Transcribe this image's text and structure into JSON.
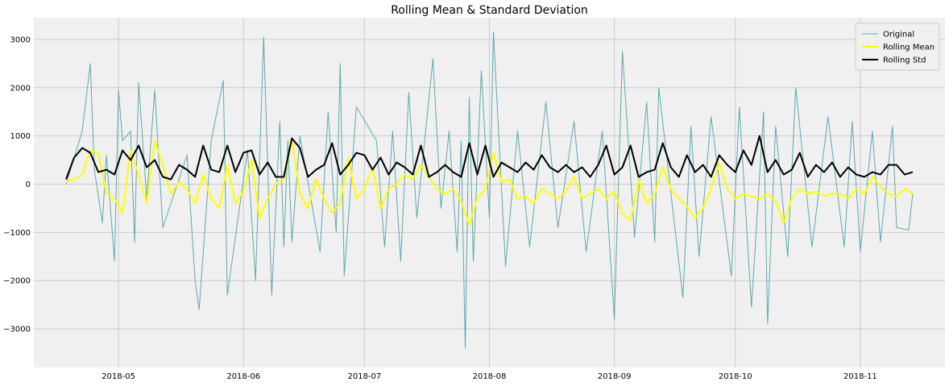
{
  "chart_data": {
    "type": "line",
    "title": "Rolling Mean & Standard Deviation",
    "xlabel": "",
    "ylabel": "",
    "x_range": [
      "2018-04-10",
      "2018-11-22"
    ],
    "ylim": [
      -3800,
      3450
    ],
    "grid": true,
    "legend_position": "top-right",
    "x_ticks": [
      "2018-05",
      "2018-06",
      "2018-07",
      "2018-08",
      "2018-09",
      "2018-10",
      "2018-11"
    ],
    "x_tick_dates": [
      "2018-05-01",
      "2018-06-01",
      "2018-07-01",
      "2018-08-01",
      "2018-09-01",
      "2018-10-01",
      "2018-11-01"
    ],
    "y_ticks": [
      -3000,
      -2000,
      -1000,
      0,
      1000,
      2000,
      3000
    ],
    "series": [
      {
        "name": "Original",
        "color": "#5fa8aa",
        "x": [
          "2018-04-18",
          "2018-04-22",
          "2018-04-24",
          "2018-04-25",
          "2018-04-27",
          "2018-04-28",
          "2018-04-30",
          "2018-05-01",
          "2018-05-02",
          "2018-05-04",
          "2018-05-05",
          "2018-05-06",
          "2018-05-08",
          "2018-05-10",
          "2018-05-12",
          "2018-05-18",
          "2018-05-20",
          "2018-05-21",
          "2018-05-24",
          "2018-05-27",
          "2018-05-28",
          "2018-06-02",
          "2018-06-04",
          "2018-06-06",
          "2018-06-08",
          "2018-06-10",
          "2018-06-11",
          "2018-06-12",
          "2018-06-13",
          "2018-06-15",
          "2018-06-20",
          "2018-06-22",
          "2018-06-24",
          "2018-06-25",
          "2018-06-26",
          "2018-06-29",
          "2018-07-04",
          "2018-07-06",
          "2018-07-08",
          "2018-07-10",
          "2018-07-12",
          "2018-07-14",
          "2018-07-18",
          "2018-07-20",
          "2018-07-22",
          "2018-07-24",
          "2018-07-25",
          "2018-07-26",
          "2018-07-27",
          "2018-07-28",
          "2018-07-30",
          "2018-08-01",
          "2018-08-02",
          "2018-08-05",
          "2018-08-08",
          "2018-08-11",
          "2018-08-15",
          "2018-08-18",
          "2018-08-22",
          "2018-08-25",
          "2018-08-29",
          "2018-09-01",
          "2018-09-03",
          "2018-09-06",
          "2018-09-09",
          "2018-09-11",
          "2018-09-12",
          "2018-09-18",
          "2018-09-20",
          "2018-09-22",
          "2018-09-25",
          "2018-09-30",
          "2018-10-02",
          "2018-10-05",
          "2018-10-08",
          "2018-10-09",
          "2018-10-11",
          "2018-10-14",
          "2018-10-16",
          "2018-10-20",
          "2018-10-24",
          "2018-10-28",
          "2018-10-30",
          "2018-11-01",
          "2018-11-04",
          "2018-11-06",
          "2018-11-09",
          "2018-11-10",
          "2018-11-13",
          "2018-11-14"
        ],
        "values": [
          0,
          1100,
          2500,
          300,
          -800,
          600,
          -1600,
          1950,
          900,
          1100,
          -1200,
          2100,
          -300,
          1950,
          -900,
          600,
          -2000,
          -2600,
          900,
          2150,
          -2300,
          700,
          -2000,
          3050,
          -2300,
          1300,
          -1300,
          900,
          -1200,
          1000,
          -1400,
          1500,
          -1000,
          2500,
          -1900,
          1600,
          900,
          -1300,
          1100,
          -1600,
          1900,
          -700,
          2600,
          -500,
          1100,
          -1400,
          900,
          -3400,
          1800,
          -1600,
          2350,
          -700,
          3150,
          -1700,
          1100,
          -1300,
          1700,
          -900,
          1300,
          -1400,
          1100,
          -2800,
          2750,
          -1100,
          1700,
          -1200,
          2000,
          -2350,
          1200,
          -1500,
          1400,
          -1900,
          1600,
          -2550,
          1500,
          -2900,
          1200,
          -1500,
          2000,
          -1300,
          1400,
          -1300,
          1300,
          -1400,
          1100,
          -1200,
          1200,
          -900,
          -950,
          -200
        ]
      },
      {
        "name": "Rolling Mean",
        "color": "#ffff00",
        "x": [
          "2018-04-18",
          "2018-04-20",
          "2018-04-22",
          "2018-04-24",
          "2018-04-26",
          "2018-04-28",
          "2018-04-30",
          "2018-05-02",
          "2018-05-04",
          "2018-05-06",
          "2018-05-08",
          "2018-05-10",
          "2018-05-12",
          "2018-05-14",
          "2018-05-16",
          "2018-05-18",
          "2018-05-20",
          "2018-05-22",
          "2018-05-24",
          "2018-05-26",
          "2018-05-28",
          "2018-05-30",
          "2018-06-01",
          "2018-06-03",
          "2018-06-05",
          "2018-06-07",
          "2018-06-09",
          "2018-06-11",
          "2018-06-13",
          "2018-06-15",
          "2018-06-17",
          "2018-06-19",
          "2018-06-21",
          "2018-06-23",
          "2018-06-25",
          "2018-06-27",
          "2018-06-29",
          "2018-07-01",
          "2018-07-03",
          "2018-07-05",
          "2018-07-07",
          "2018-07-09",
          "2018-07-11",
          "2018-07-13",
          "2018-07-15",
          "2018-07-17",
          "2018-07-19",
          "2018-07-21",
          "2018-07-23",
          "2018-07-25",
          "2018-07-27",
          "2018-07-29",
          "2018-07-31",
          "2018-08-02",
          "2018-08-04",
          "2018-08-06",
          "2018-08-08",
          "2018-08-10",
          "2018-08-12",
          "2018-08-14",
          "2018-08-16",
          "2018-08-18",
          "2018-08-20",
          "2018-08-22",
          "2018-08-24",
          "2018-08-26",
          "2018-08-28",
          "2018-08-30",
          "2018-09-01",
          "2018-09-03",
          "2018-09-05",
          "2018-09-07",
          "2018-09-09",
          "2018-09-11",
          "2018-09-13",
          "2018-09-15",
          "2018-09-17",
          "2018-09-19",
          "2018-09-21",
          "2018-09-23",
          "2018-09-25",
          "2018-09-27",
          "2018-09-29",
          "2018-10-01",
          "2018-10-03",
          "2018-10-05",
          "2018-10-07",
          "2018-10-09",
          "2018-10-11",
          "2018-10-13",
          "2018-10-15",
          "2018-10-17",
          "2018-10-19",
          "2018-10-21",
          "2018-10-23",
          "2018-10-25",
          "2018-10-27",
          "2018-10-29",
          "2018-10-31",
          "2018-11-02",
          "2018-11-04",
          "2018-11-06",
          "2018-11-08",
          "2018-11-10",
          "2018-11-12",
          "2018-11-14"
        ],
        "values": [
          50,
          100,
          200,
          700,
          650,
          -200,
          -300,
          -600,
          700,
          200,
          -400,
          900,
          400,
          -200,
          50,
          -100,
          -400,
          200,
          -300,
          -500,
          400,
          -400,
          -150,
          500,
          -700,
          -300,
          0,
          100,
          950,
          -200,
          -500,
          100,
          -300,
          -600,
          -400,
          550,
          -300,
          -100,
          350,
          -500,
          -100,
          0,
          200,
          100,
          400,
          150,
          -100,
          -200,
          -100,
          -350,
          -850,
          -300,
          -100,
          650,
          50,
          100,
          -300,
          -250,
          -400,
          -100,
          -200,
          -300,
          -150,
          150,
          -300,
          -200,
          -100,
          -300,
          -150,
          -600,
          -750,
          100,
          -400,
          -200,
          350,
          -100,
          -300,
          -450,
          -700,
          -500,
          -100,
          450,
          -100,
          -300,
          -200,
          -250,
          -300,
          -200,
          -350,
          -800,
          -300,
          -100,
          -200,
          -150,
          -250,
          -200,
          -200,
          -300,
          -100,
          -200,
          150,
          -50,
          -200,
          -250,
          -100,
          -200
        ]
      },
      {
        "name": "Rolling Std",
        "color": "#000000",
        "x": [
          "2018-04-18",
          "2018-04-20",
          "2018-04-22",
          "2018-04-24",
          "2018-04-26",
          "2018-04-28",
          "2018-04-30",
          "2018-05-02",
          "2018-05-04",
          "2018-05-06",
          "2018-05-08",
          "2018-05-10",
          "2018-05-12",
          "2018-05-14",
          "2018-05-16",
          "2018-05-18",
          "2018-05-20",
          "2018-05-22",
          "2018-05-24",
          "2018-05-26",
          "2018-05-28",
          "2018-05-30",
          "2018-06-01",
          "2018-06-03",
          "2018-06-05",
          "2018-06-07",
          "2018-06-09",
          "2018-06-11",
          "2018-06-13",
          "2018-06-15",
          "2018-06-17",
          "2018-06-19",
          "2018-06-21",
          "2018-06-23",
          "2018-06-25",
          "2018-06-27",
          "2018-06-29",
          "2018-07-01",
          "2018-07-03",
          "2018-07-05",
          "2018-07-07",
          "2018-07-09",
          "2018-07-11",
          "2018-07-13",
          "2018-07-15",
          "2018-07-17",
          "2018-07-19",
          "2018-07-21",
          "2018-07-23",
          "2018-07-25",
          "2018-07-27",
          "2018-07-29",
          "2018-07-31",
          "2018-08-02",
          "2018-08-04",
          "2018-08-06",
          "2018-08-08",
          "2018-08-10",
          "2018-08-12",
          "2018-08-14",
          "2018-08-16",
          "2018-08-18",
          "2018-08-20",
          "2018-08-22",
          "2018-08-24",
          "2018-08-26",
          "2018-08-28",
          "2018-08-30",
          "2018-09-01",
          "2018-09-03",
          "2018-09-05",
          "2018-09-07",
          "2018-09-09",
          "2018-09-11",
          "2018-09-13",
          "2018-09-15",
          "2018-09-17",
          "2018-09-19",
          "2018-09-21",
          "2018-09-23",
          "2018-09-25",
          "2018-09-27",
          "2018-09-29",
          "2018-10-01",
          "2018-10-03",
          "2018-10-05",
          "2018-10-07",
          "2018-10-09",
          "2018-10-11",
          "2018-10-13",
          "2018-10-15",
          "2018-10-17",
          "2018-10-19",
          "2018-10-21",
          "2018-10-23",
          "2018-10-25",
          "2018-10-27",
          "2018-10-29",
          "2018-10-31",
          "2018-11-02",
          "2018-11-04",
          "2018-11-06",
          "2018-11-08",
          "2018-11-10",
          "2018-11-12",
          "2018-11-14"
        ],
        "values": [
          100,
          550,
          750,
          650,
          250,
          300,
          200,
          700,
          500,
          800,
          350,
          500,
          150,
          100,
          400,
          300,
          150,
          800,
          300,
          250,
          800,
          250,
          650,
          700,
          200,
          450,
          150,
          150,
          950,
          750,
          150,
          300,
          400,
          850,
          200,
          400,
          650,
          600,
          300,
          550,
          200,
          450,
          350,
          200,
          800,
          150,
          250,
          400,
          250,
          150,
          850,
          200,
          800,
          150,
          450,
          350,
          250,
          450,
          300,
          600,
          350,
          250,
          400,
          250,
          350,
          150,
          400,
          800,
          200,
          350,
          800,
          150,
          250,
          300,
          850,
          350,
          150,
          600,
          250,
          400,
          150,
          600,
          400,
          250,
          700,
          400,
          1000,
          250,
          500,
          200,
          300,
          650,
          150,
          400,
          250,
          450,
          150,
          350,
          200,
          150,
          250,
          200,
          400,
          400,
          200,
          250
        ]
      }
    ]
  }
}
